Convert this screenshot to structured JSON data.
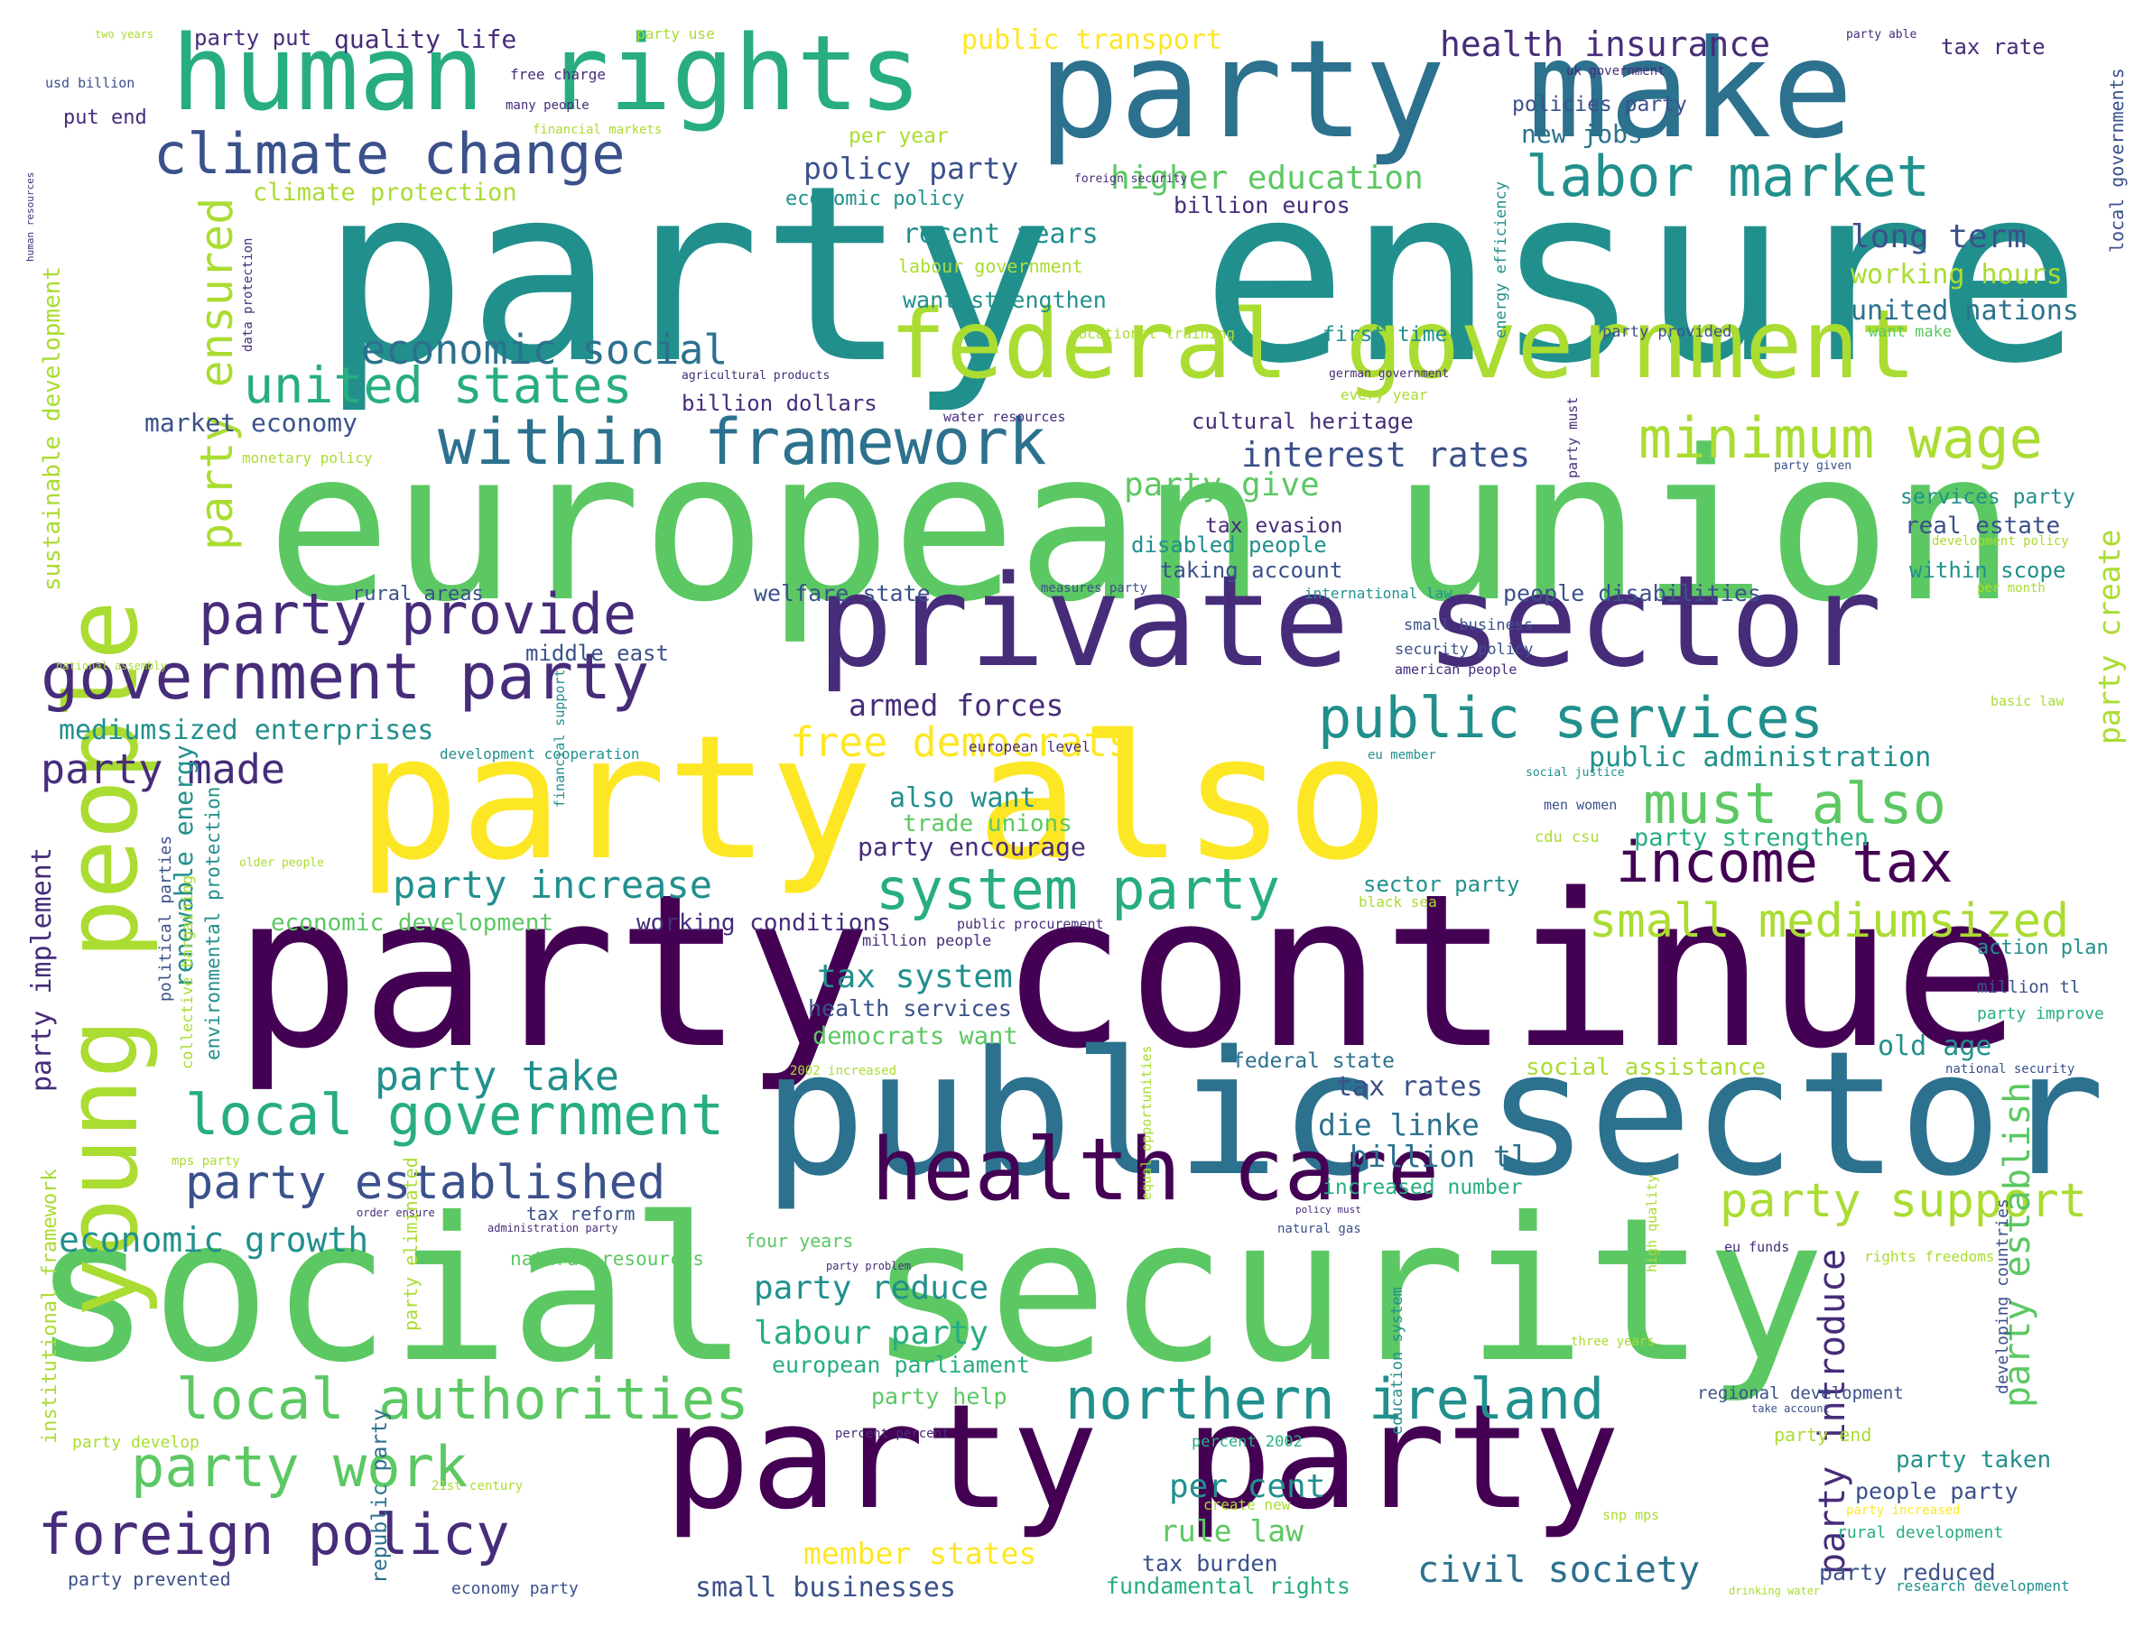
{
  "colors": {
    "background": "#ffffff",
    "palette": [
      "#440154",
      "#472c7a",
      "#3b518b",
      "#2c718e",
      "#21908d",
      "#27ad81",
      "#5cc863",
      "#aadc32",
      "#fde725"
    ]
  },
  "words": [
    {
      "text": "party ensure",
      "c": "#21908d"
    },
    {
      "text": "european union",
      "c": "#5cc863"
    },
    {
      "text": "party continue",
      "c": "#440154"
    },
    {
      "text": "social security",
      "c": "#5cc863"
    },
    {
      "text": "public sector",
      "c": "#2c718e"
    },
    {
      "text": "party also",
      "c": "#fde725"
    },
    {
      "text": "private sector",
      "c": "#472c7a"
    },
    {
      "text": "party make",
      "c": "#2c718e"
    },
    {
      "text": "party party",
      "c": "#440154"
    },
    {
      "text": "human rights",
      "c": "#27ad81"
    },
    {
      "text": "young people",
      "c": "#aadc32"
    },
    {
      "text": "federal government",
      "c": "#aadc32"
    },
    {
      "text": "health care",
      "c": "#440154"
    },
    {
      "text": "government party",
      "c": "#472c7a"
    },
    {
      "text": "within framework",
      "c": "#2c718e"
    },
    {
      "text": "climate change",
      "c": "#3b518b"
    },
    {
      "text": "labor market",
      "c": "#21908d"
    },
    {
      "text": "party provide",
      "c": "#472c7a"
    },
    {
      "text": "public services",
      "c": "#21908d"
    },
    {
      "text": "income tax",
      "c": "#440154"
    },
    {
      "text": "minimum wage",
      "c": "#aadc32"
    },
    {
      "text": "northern ireland",
      "c": "#21908d"
    },
    {
      "text": "local authorities",
      "c": "#5cc863"
    },
    {
      "text": "foreign policy",
      "c": "#472c7a"
    },
    {
      "text": "local government",
      "c": "#27ad81"
    },
    {
      "text": "party work",
      "c": "#5cc863"
    },
    {
      "text": "system party",
      "c": "#27ad81"
    },
    {
      "text": "must also",
      "c": "#5cc863"
    },
    {
      "text": "united states",
      "c": "#27ad81"
    },
    {
      "text": "economic social",
      "c": "#2c718e"
    },
    {
      "text": "party established",
      "c": "#3b518b"
    },
    {
      "text": "party support",
      "c": "#aadc32"
    },
    {
      "text": "small mediumsized",
      "c": "#aadc32"
    },
    {
      "text": "party ensured",
      "c": "#aadc32"
    },
    {
      "text": "free democrats",
      "c": "#fde725"
    },
    {
      "text": "party increase",
      "c": "#21908d"
    },
    {
      "text": "civil society",
      "c": "#2c718e"
    },
    {
      "text": "party made",
      "c": "#472c7a"
    },
    {
      "text": "mediumsized enterprises",
      "c": "#21908d"
    },
    {
      "text": "economic growth",
      "c": "#21908d"
    },
    {
      "text": "party take",
      "c": "#21908d"
    },
    {
      "text": "member states",
      "c": "#fde725"
    },
    {
      "text": "interest rates",
      "c": "#3b518b"
    },
    {
      "text": "higher education",
      "c": "#5cc863"
    },
    {
      "text": "health insurance",
      "c": "#472c7a"
    },
    {
      "text": "public transport",
      "c": "#fde725"
    },
    {
      "text": "quality life",
      "c": "#472c7a"
    },
    {
      "text": "policy party",
      "c": "#3b518b"
    },
    {
      "text": "labour party",
      "c": "#27ad81"
    },
    {
      "text": "party reduce",
      "c": "#21908d"
    },
    {
      "text": "armed forces",
      "c": "#472c7a"
    },
    {
      "text": "tax system",
      "c": "#21908d"
    },
    {
      "text": "rule law",
      "c": "#5cc863"
    },
    {
      "text": "per cent",
      "c": "#21908d"
    },
    {
      "text": "tax rates",
      "c": "#3b518b"
    },
    {
      "text": "die linke",
      "c": "#2c718e"
    },
    {
      "text": "billion tl",
      "c": "#2c718e"
    },
    {
      "text": "long term",
      "c": "#3b518b"
    },
    {
      "text": "working hours",
      "c": "#aadc32"
    },
    {
      "text": "united nations",
      "c": "#2c718e"
    },
    {
      "text": "new jobs",
      "c": "#2c718e"
    },
    {
      "text": "recent years",
      "c": "#21908d"
    },
    {
      "text": "want strengthen",
      "c": "#21908d"
    },
    {
      "text": "party give",
      "c": "#5cc863"
    },
    {
      "text": "market economy",
      "c": "#3b518b"
    },
    {
      "text": "public administration",
      "c": "#21908d"
    },
    {
      "text": "party strengthen",
      "c": "#27ad81"
    },
    {
      "text": "party encourage",
      "c": "#472c7a"
    },
    {
      "text": "also want",
      "c": "#21908d"
    },
    {
      "text": "trade unions",
      "c": "#5cc863"
    },
    {
      "text": "economic development",
      "c": "#5cc863"
    },
    {
      "text": "working conditions",
      "c": "#472c7a"
    },
    {
      "text": "health services",
      "c": "#3b518b"
    },
    {
      "text": "democrats want",
      "c": "#5cc863"
    },
    {
      "text": "european parliament",
      "c": "#27ad81"
    },
    {
      "text": "party help",
      "c": "#5cc863"
    },
    {
      "text": "small businesses",
      "c": "#3b518b"
    },
    {
      "text": "fundamental rights",
      "c": "#27ad81"
    },
    {
      "text": "tax burden",
      "c": "#3b518b"
    },
    {
      "text": "party introduce",
      "c": "#472c7a"
    },
    {
      "text": "party establish",
      "c": "#5cc863"
    },
    {
      "text": "party create",
      "c": "#aadc32"
    },
    {
      "text": "social assistance",
      "c": "#aadc32"
    },
    {
      "text": "old age",
      "c": "#21908d"
    },
    {
      "text": "federal state",
      "c": "#2c718e"
    },
    {
      "text": "people disabilities",
      "c": "#3b518b"
    },
    {
      "text": "welfare state",
      "c": "#3b518b"
    },
    {
      "text": "rural areas",
      "c": "#3b518b"
    },
    {
      "text": "middle east",
      "c": "#3b518b"
    },
    {
      "text": "real estate",
      "c": "#3b518b"
    },
    {
      "text": "services party",
      "c": "#21908d"
    },
    {
      "text": "within scope",
      "c": "#21908d"
    },
    {
      "text": "tax evasion",
      "c": "#472c7a"
    },
    {
      "text": "disabled people",
      "c": "#21908d"
    },
    {
      "text": "taking account",
      "c": "#3b518b"
    },
    {
      "text": "cultural heritage",
      "c": "#472c7a"
    },
    {
      "text": "first time",
      "c": "#21908d"
    },
    {
      "text": "billion dollars",
      "c": "#472c7a"
    },
    {
      "text": "party put",
      "c": "#472c7a"
    },
    {
      "text": "put end",
      "c": "#472c7a"
    },
    {
      "text": "per year",
      "c": "#aadc32"
    },
    {
      "text": "economic policy",
      "c": "#21908d"
    },
    {
      "text": "billion euros",
      "c": "#472c7a"
    },
    {
      "text": "policies party",
      "c": "#3b518b"
    },
    {
      "text": "tax rate",
      "c": "#472c7a"
    },
    {
      "text": "climate protection",
      "c": "#aadc32"
    },
    {
      "text": "labour government",
      "c": "#aadc32"
    },
    {
      "text": "increased number",
      "c": "#27ad81"
    },
    {
      "text": "tax reform",
      "c": "#3b518b"
    },
    {
      "text": "party taken",
      "c": "#21908d"
    },
    {
      "text": "people party",
      "c": "#3b518b"
    },
    {
      "text": "party reduced",
      "c": "#3b518b"
    },
    {
      "text": "action plan",
      "c": "#21908d"
    },
    {
      "text": "party implement",
      "c": "#472c7a"
    },
    {
      "text": "renewable energy",
      "c": "#21908d"
    },
    {
      "text": "republic party",
      "c": "#2c718e"
    },
    {
      "text": "four years",
      "c": "#5cc863"
    },
    {
      "text": "natural resources",
      "c": "#5cc863"
    },
    {
      "text": "regional development",
      "c": "#3b518b"
    },
    {
      "text": "million people",
      "c": "#472c7a"
    },
    {
      "text": "european level",
      "c": "#472c7a"
    },
    {
      "text": "sector party",
      "c": "#21908d"
    },
    {
      "text": "party end",
      "c": "#aadc32"
    },
    {
      "text": "rural development",
      "c": "#27ad81"
    },
    {
      "text": "million tl",
      "c": "#3b518b"
    },
    {
      "text": "party improve",
      "c": "#27ad81"
    },
    {
      "text": "party develop",
      "c": "#aadc32"
    },
    {
      "text": "party prevented",
      "c": "#3b518b"
    },
    {
      "text": "economy party",
      "c": "#3b518b"
    },
    {
      "text": "research development",
      "c": "#21908d"
    },
    {
      "text": "rights freedoms",
      "c": "#aadc32"
    },
    {
      "text": "three years",
      "c": "#aadc32"
    },
    {
      "text": "percent 2002",
      "c": "#27ad81"
    },
    {
      "text": "percent percent",
      "c": "#472c7a"
    },
    {
      "text": "security policy",
      "c": "#3b518b"
    },
    {
      "text": "small business",
      "c": "#3b518b"
    },
    {
      "text": "american people",
      "c": "#472c7a"
    },
    {
      "text": "international law",
      "c": "#21908d"
    },
    {
      "text": "development policy",
      "c": "#aadc32"
    },
    {
      "text": "per month",
      "c": "#aadc32"
    },
    {
      "text": "basic law",
      "c": "#aadc32"
    },
    {
      "text": "eu member",
      "c": "#21908d"
    },
    {
      "text": "social justice",
      "c": "#21908d"
    },
    {
      "text": "men women",
      "c": "#3b518b"
    },
    {
      "text": "cdu csu",
      "c": "#aadc32"
    },
    {
      "text": "black sea",
      "c": "#aadc32"
    },
    {
      "text": "public procurement",
      "c": "#472c7a"
    },
    {
      "text": "natural gas",
      "c": "#3b518b"
    },
    {
      "text": "eu funds",
      "c": "#472c7a"
    },
    {
      "text": "take account",
      "c": "#3b518b"
    },
    {
      "text": "national security",
      "c": "#3b518b"
    },
    {
      "text": "snp mps",
      "c": "#aadc32"
    },
    {
      "text": "party increased",
      "c": "#fde725"
    },
    {
      "text": "drinking water",
      "c": "#aadc32"
    },
    {
      "text": "vocational training",
      "c": "#aadc32"
    },
    {
      "text": "water resources",
      "c": "#472c7a"
    },
    {
      "text": "every year",
      "c": "#aadc32"
    },
    {
      "text": "german government",
      "c": "#472c7a"
    },
    {
      "text": "agricultural products",
      "c": "#472c7a"
    },
    {
      "text": "party provided",
      "c": "#3b518b"
    },
    {
      "text": "want make",
      "c": "#5cc863"
    },
    {
      "text": "party given",
      "c": "#3b518b"
    },
    {
      "text": "monetary policy",
      "c": "#aadc32"
    },
    {
      "text": "measures party",
      "c": "#3b518b"
    },
    {
      "text": "foreign security",
      "c": "#472c7a"
    },
    {
      "text": "financial markets",
      "c": "#aadc32"
    },
    {
      "text": "free charge",
      "c": "#472c7a"
    },
    {
      "text": "many people",
      "c": "#472c7a"
    },
    {
      "text": "usd billion",
      "c": "#3b518b"
    },
    {
      "text": "two years",
      "c": "#aadc32"
    },
    {
      "text": "party use",
      "c": "#aadc32"
    },
    {
      "text": "party able",
      "c": "#472c7a"
    },
    {
      "text": "uk government",
      "c": "#472c7a"
    },
    {
      "text": "older people",
      "c": "#aadc32"
    },
    {
      "text": "development cooperation",
      "c": "#21908d"
    },
    {
      "text": "national assembly",
      "c": "#aadc32"
    },
    {
      "text": "2002 increased",
      "c": "#aadc32"
    },
    {
      "text": "mps party",
      "c": "#aadc32"
    },
    {
      "text": "21st century",
      "c": "#aadc32"
    },
    {
      "text": "create new",
      "c": "#aadc32"
    },
    {
      "text": "order ensure",
      "c": "#472c7a"
    },
    {
      "text": "administration party",
      "c": "#472c7a"
    },
    {
      "text": "policy must",
      "c": "#472c7a"
    },
    {
      "text": "party problem",
      "c": "#472c7a"
    },
    {
      "text": "sustainable development",
      "c": "#aadc32"
    },
    {
      "text": "institutional framework",
      "c": "#aadc32"
    },
    {
      "text": "political parties",
      "c": "#3b518b"
    },
    {
      "text": "collective bargaining",
      "c": "#aadc32"
    },
    {
      "text": "environmental protection",
      "c": "#21908d"
    },
    {
      "text": "financial support",
      "c": "#21908d"
    },
    {
      "text": "equal opportunities",
      "c": "#aadc32"
    },
    {
      "text": "party eliminated",
      "c": "#aadc32"
    },
    {
      "text": "education system",
      "c": "#21908d"
    },
    {
      "text": "high quality",
      "c": "#aadc32"
    },
    {
      "text": "developing countries",
      "c": "#3b518b"
    },
    {
      "text": "local governments",
      "c": "#3b518b"
    },
    {
      "text": "energy efficiency",
      "c": "#21908d"
    },
    {
      "text": "party must",
      "c": "#472c7a"
    },
    {
      "text": "data protection",
      "c": "#472c7a"
    },
    {
      "text": "human resources",
      "c": "#472c7a"
    }
  ]
}
